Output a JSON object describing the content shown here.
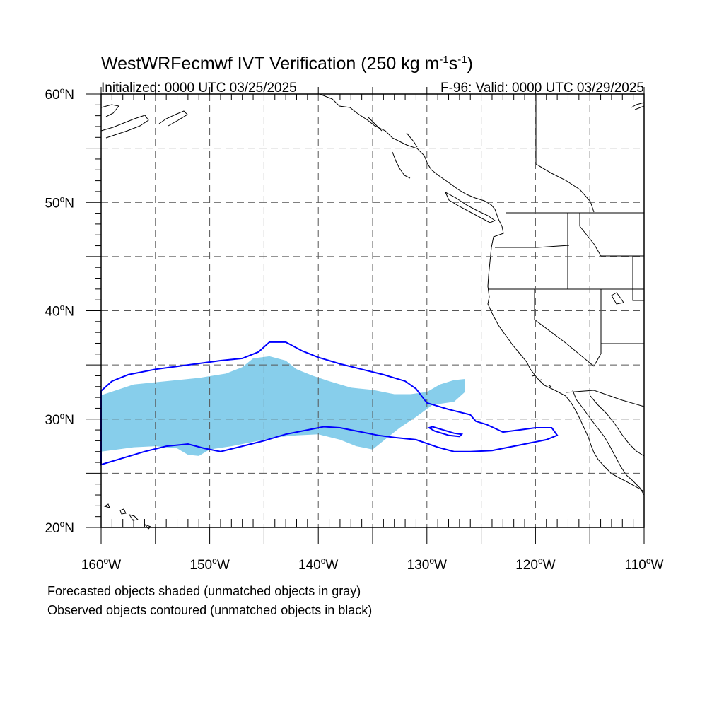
{
  "map": {
    "title_main": "WestWRFecmwf IVT Verification (250 kg m",
    "title_exp1": "-1",
    "title_mid": "s",
    "title_exp2": "-1",
    "title_end": ")",
    "init_label": "Initialized: 0000 UTC 03/25/2025",
    "valid_label": "F-96: Valid: 0000 UTC 03/29/2025",
    "lat_labels": [
      {
        "deg": "20",
        "hemi": "N",
        "lat": 20
      },
      {
        "deg": "30",
        "hemi": "N",
        "lat": 30
      },
      {
        "deg": "40",
        "hemi": "N",
        "lat": 40
      },
      {
        "deg": "50",
        "hemi": "N",
        "lat": 50
      },
      {
        "deg": "60",
        "hemi": "N",
        "lat": 60
      }
    ],
    "lon_labels": [
      {
        "deg": "160",
        "hemi": "W",
        "lon": -160
      },
      {
        "deg": "150",
        "hemi": "W",
        "lon": -150
      },
      {
        "deg": "140",
        "hemi": "W",
        "lon": -140
      },
      {
        "deg": "130",
        "hemi": "W",
        "lon": -130
      },
      {
        "deg": "120",
        "hemi": "W",
        "lon": -120
      },
      {
        "deg": "110",
        "hemi": "W",
        "lon": -110
      }
    ],
    "extent": {
      "lon_min": -160,
      "lon_max": -110,
      "lat_min": 20,
      "lat_max": 60
    },
    "grid_step_deg": 5,
    "caption_forecast": "Forecasted objects shaded (unmatched objects in gray)",
    "caption_observed": "Observed objects contoured (unmatched objects in black)",
    "colors": {
      "forecast_fill": "#87ceeb",
      "observed_contour": "#0000ff",
      "coastline": "#000000",
      "grid": "#555555"
    },
    "forecast_object": [
      [
        -160,
        32.2
      ],
      [
        -157,
        33.2
      ],
      [
        -154,
        33.5
      ],
      [
        -151,
        33.8
      ],
      [
        -148.5,
        34.2
      ],
      [
        -147,
        34.8
      ],
      [
        -146,
        35.6
      ],
      [
        -144.5,
        35.8
      ],
      [
        -143,
        35.4
      ],
      [
        -142,
        34.6
      ],
      [
        -140.5,
        34.0
      ],
      [
        -139,
        33.5
      ],
      [
        -137,
        32.9
      ],
      [
        -135,
        32.7
      ],
      [
        -133,
        32.3
      ],
      [
        -131.5,
        32.3
      ],
      [
        -130,
        32.5
      ],
      [
        -128.8,
        33.2
      ],
      [
        -127.5,
        33.6
      ],
      [
        -126.5,
        33.7
      ],
      [
        -126.5,
        32.5
      ],
      [
        -127.5,
        31.6
      ],
      [
        -129.5,
        31.3
      ],
      [
        -131,
        30.2
      ],
      [
        -132.5,
        29.2
      ],
      [
        -134,
        28.0
      ],
      [
        -135,
        27.2
      ],
      [
        -136.5,
        27.5
      ],
      [
        -138,
        28.1
      ],
      [
        -140,
        28.6
      ],
      [
        -142,
        28.5
      ],
      [
        -144,
        28.3
      ],
      [
        -146.5,
        27.8
      ],
      [
        -148,
        27.5
      ],
      [
        -150,
        27.2
      ],
      [
        -151,
        26.6
      ],
      [
        -152,
        26.7
      ],
      [
        -153,
        27.3
      ],
      [
        -155,
        27.5
      ],
      [
        -157,
        27.4
      ],
      [
        -158.5,
        27.2
      ],
      [
        -160,
        27.0
      ]
    ],
    "observed_contour_main": [
      [
        -160,
        32.6
      ],
      [
        -159,
        33.5
      ],
      [
        -157.5,
        34.1
      ],
      [
        -155,
        34.6
      ],
      [
        -152,
        35.0
      ],
      [
        -149,
        35.4
      ],
      [
        -147,
        35.6
      ],
      [
        -145.5,
        36.2
      ],
      [
        -144.5,
        37.1
      ],
      [
        -143,
        37.1
      ],
      [
        -141.5,
        36.3
      ],
      [
        -140,
        35.7
      ],
      [
        -138,
        35.1
      ],
      [
        -136,
        34.6
      ],
      [
        -134,
        34.1
      ],
      [
        -132,
        33.5
      ],
      [
        -131,
        32.8
      ],
      [
        -130,
        31.5
      ],
      [
        -128,
        30.9
      ],
      [
        -126,
        30.4
      ],
      [
        -125.5,
        29.8
      ],
      [
        -124.5,
        29.5
      ],
      [
        -123,
        28.8
      ],
      [
        -121.5,
        29.0
      ],
      [
        -120,
        29.2
      ],
      [
        -118.5,
        29.2
      ],
      [
        -118,
        28.5
      ],
      [
        -119,
        28.1
      ],
      [
        -120.5,
        27.8
      ],
      [
        -122,
        27.5
      ],
      [
        -124,
        27.1
      ],
      [
        -126,
        27.0
      ],
      [
        -127.5,
        27.0
      ],
      [
        -129,
        27.4
      ],
      [
        -131,
        28.1
      ],
      [
        -133,
        28.3
      ],
      [
        -134.5,
        28.5
      ],
      [
        -136,
        28.8
      ],
      [
        -138,
        29.2
      ],
      [
        -139.5,
        29.3
      ],
      [
        -141,
        29.0
      ],
      [
        -143,
        28.6
      ],
      [
        -145,
        28.0
      ],
      [
        -147,
        27.5
      ],
      [
        -149,
        27.0
      ],
      [
        -150.5,
        27.3
      ],
      [
        -152,
        27.7
      ],
      [
        -154,
        27.5
      ],
      [
        -156,
        27.0
      ],
      [
        -158,
        26.4
      ],
      [
        -160,
        25.8
      ]
    ],
    "observed_contour_small": [
      [
        -129.5,
        29.3
      ],
      [
        -128.5,
        29.0
      ],
      [
        -127.5,
        28.7
      ],
      [
        -126.8,
        28.6
      ],
      [
        -127,
        28.4
      ],
      [
        -128,
        28.5
      ],
      [
        -129.3,
        28.9
      ],
      [
        -129.8,
        29.2
      ]
    ]
  }
}
